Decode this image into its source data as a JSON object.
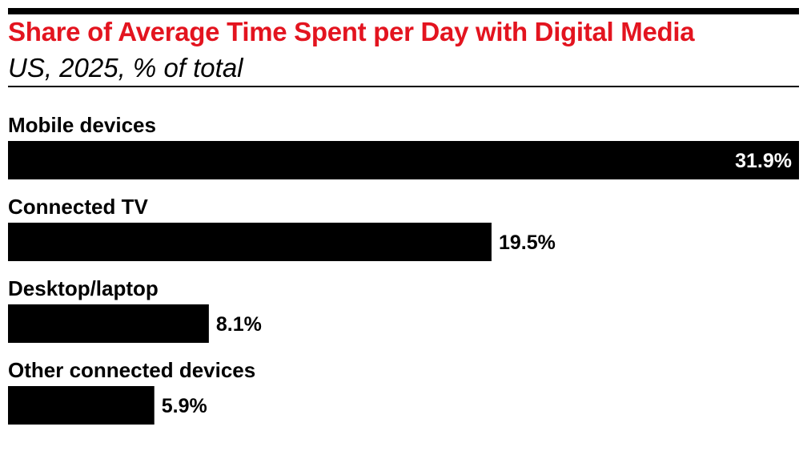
{
  "title": "Share of Average Time Spent per Day with Digital Media",
  "subtitle": "US, 2025, % of total",
  "colors": {
    "title": "#e3141f",
    "bar": "#000000",
    "label_inside": "#ffffff",
    "label_outside": "#000000"
  },
  "chart_data": {
    "type": "bar",
    "orientation": "horizontal",
    "categories": [
      "Mobile devices",
      "Connected TV",
      "Desktop/laptop",
      "Other connected devices"
    ],
    "values": [
      31.9,
      19.5,
      8.1,
      5.9
    ],
    "value_labels": [
      "31.9%",
      "19.5%",
      "8.1%",
      "5.9%"
    ],
    "title": "Share of Average Time Spent per Day with Digital Media",
    "subtitle": "US, 2025, % of total",
    "xlim": [
      0,
      31.9
    ],
    "grid": false,
    "legend": "none"
  }
}
